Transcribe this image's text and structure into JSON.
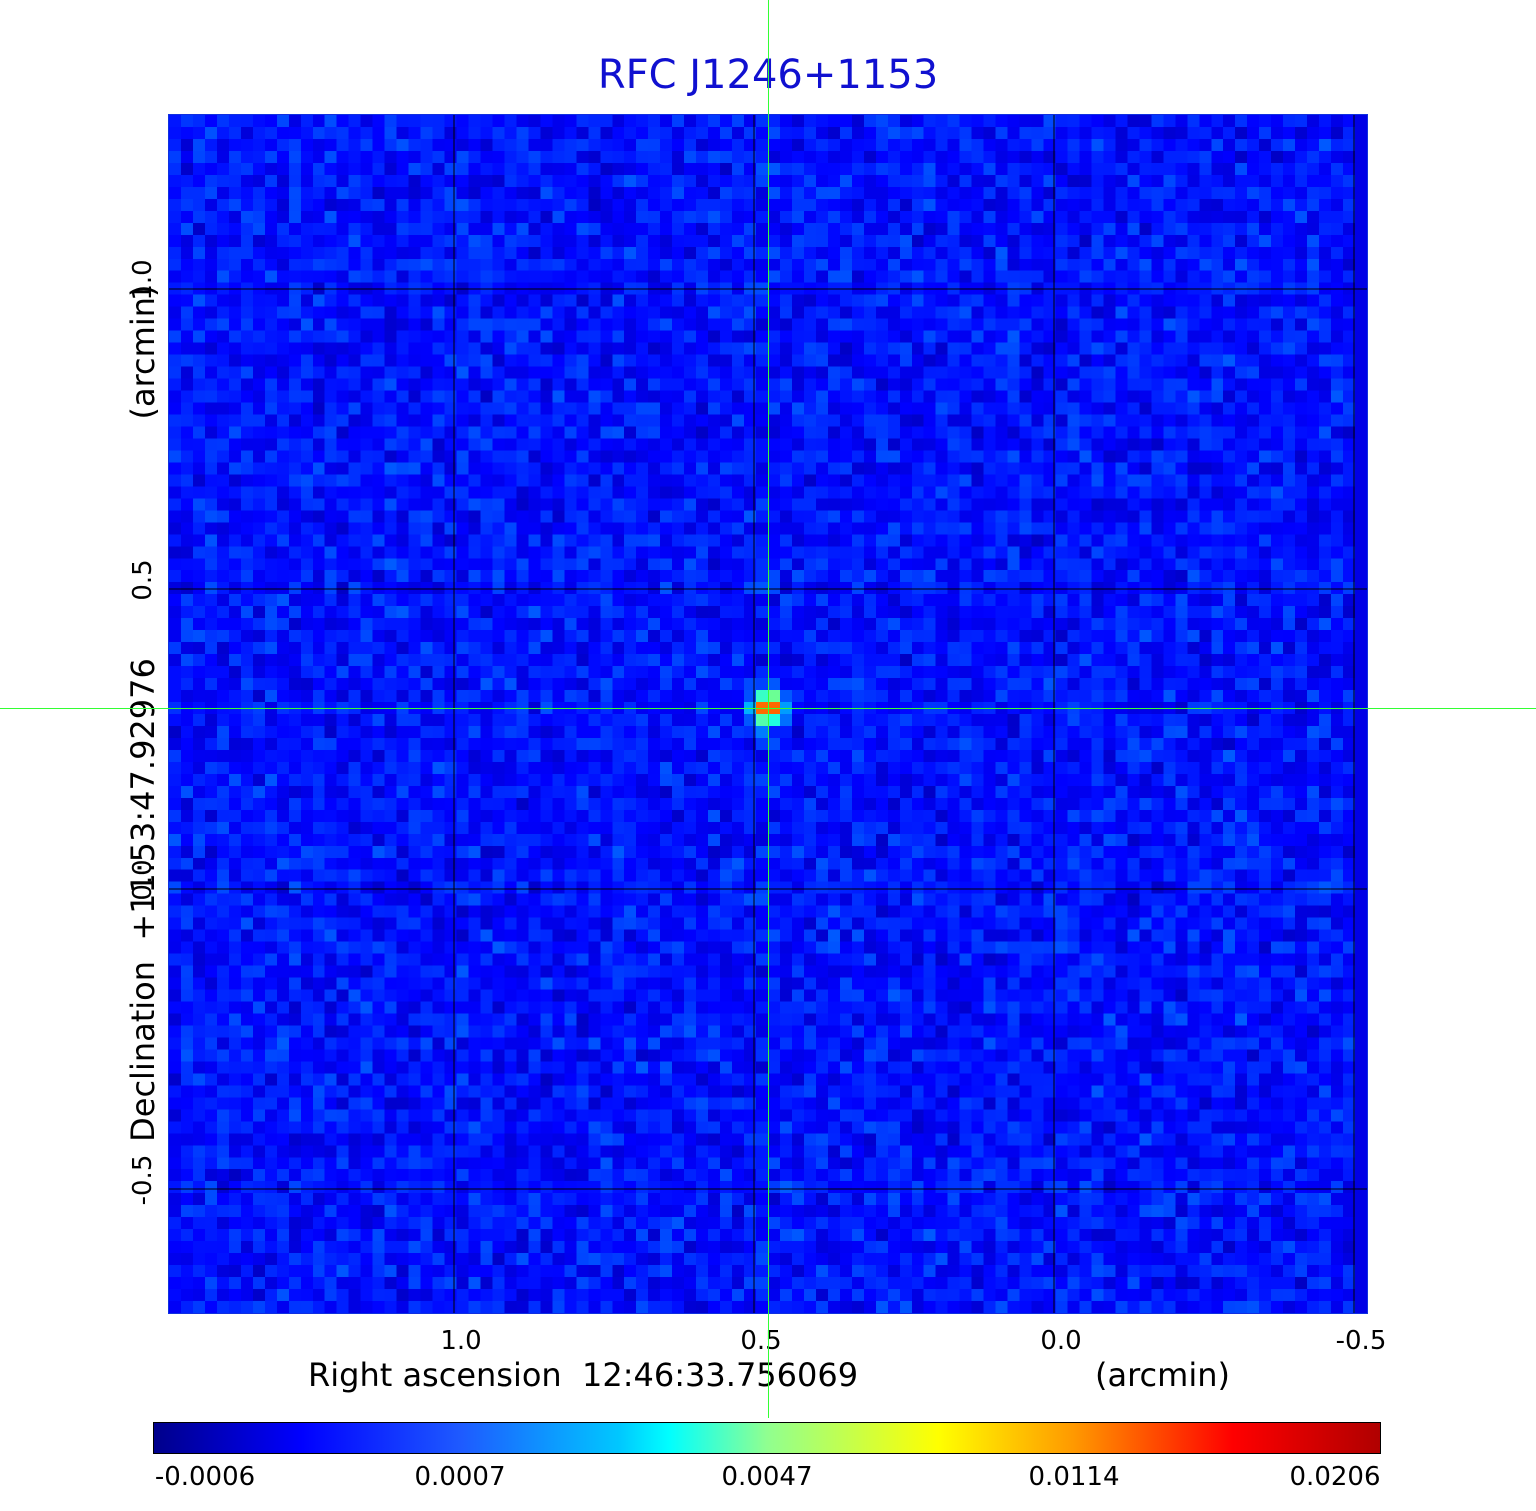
{
  "chart_data": {
    "type": "heatmap",
    "title": "RFC J1246+1153",
    "xlabel": "Right ascension  12:46:33.756069",
    "x_unit": "(arcmin)",
    "ylabel": "Declination  +11:53:47.92976",
    "y_unit": "(arcmin)",
    "x_ticks": [
      "1.0",
      "0.5",
      "0.0",
      "-0.5"
    ],
    "x_tick_values": [
      1.0,
      0.5,
      0.0,
      -0.5
    ],
    "xlim": [
      1.475,
      -0.525
    ],
    "y_ticks": [
      "1.0",
      "0.5",
      "0.0",
      "-0.5"
    ],
    "y_tick_values": [
      1.0,
      0.5,
      0.0,
      -0.5
    ],
    "ylim": [
      -0.71,
      1.29
    ],
    "grid": true,
    "source_peak": {
      "x": 0.475,
      "y": 0.3,
      "value": 0.0206
    },
    "crosshair": {
      "x": 0.475,
      "y": 0.3
    },
    "colorbar": {
      "labels": [
        "-0.0006",
        "0.0007",
        "0.0047",
        "0.0114",
        "0.0206"
      ],
      "colormap": "jet"
    }
  },
  "colors": {
    "title": "#1010d0",
    "crosshair": "#33ff33",
    "grid": "#000000",
    "background": "#1e5aff"
  }
}
